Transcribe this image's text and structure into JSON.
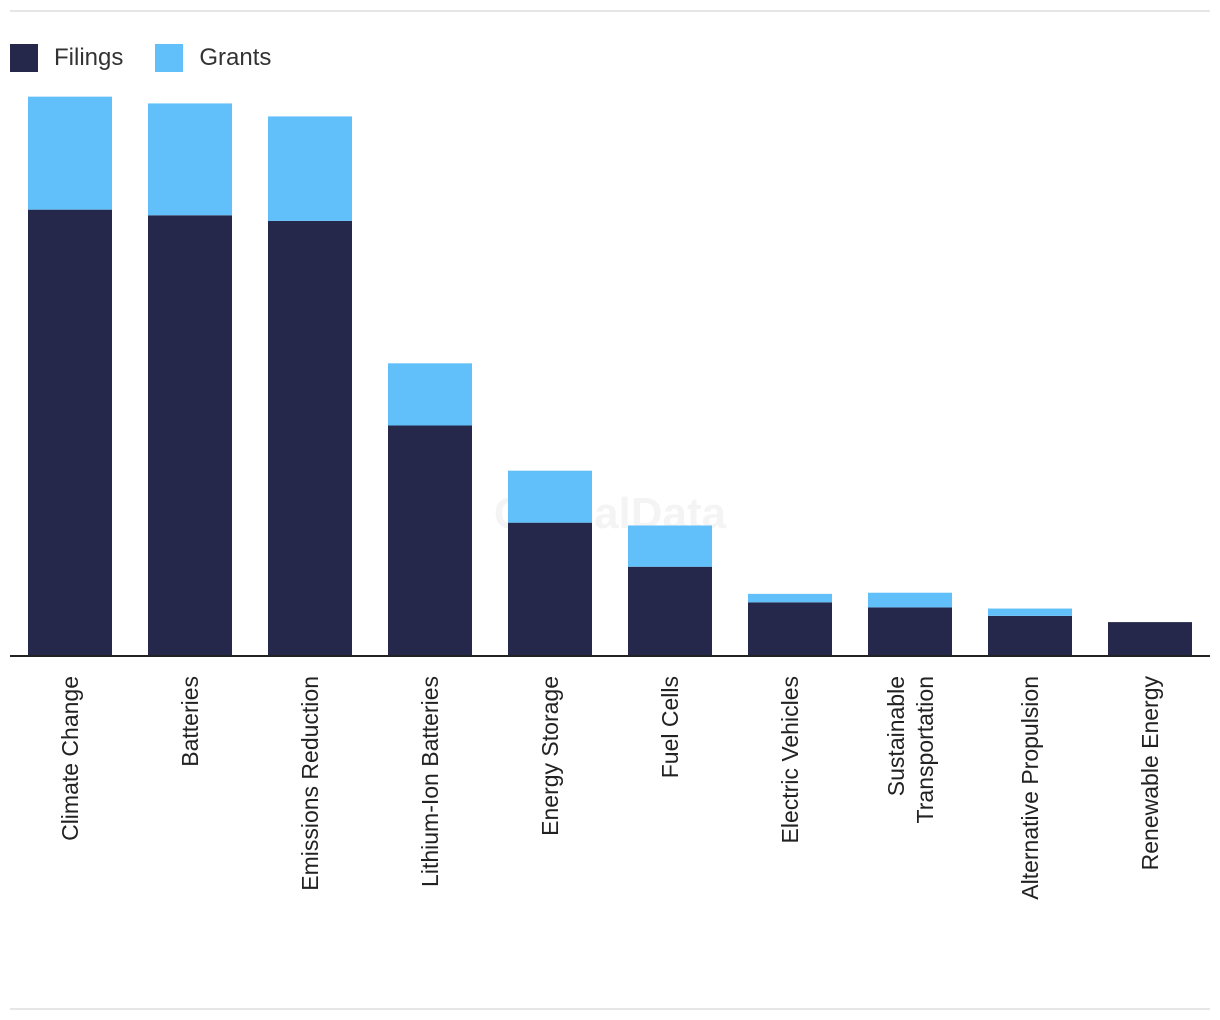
{
  "chart_data": {
    "type": "bar",
    "stacked": true,
    "categories": [
      "Climate Change",
      "Batteries",
      "Emissions Reduction",
      "Lithium-Ion Batteries",
      "Energy Storage",
      "Fuel Cells",
      "Electric Vehicles",
      "Sustainable Transportation",
      "Alternative Propulsion",
      "Renewable Energy"
    ],
    "series": [
      {
        "name": "Filings",
        "color": "#26284b",
        "values": [
          790,
          780,
          770,
          408,
          236,
          158,
          95,
          86,
          71,
          60
        ]
      },
      {
        "name": "Grants",
        "color": "#61c0f9",
        "values": [
          200,
          198,
          185,
          110,
          92,
          73,
          15,
          26,
          13,
          0
        ]
      }
    ],
    "ylim": [
      0,
      1000
    ],
    "grid": false,
    "legend": "top-left",
    "watermark": "GlobalData"
  }
}
